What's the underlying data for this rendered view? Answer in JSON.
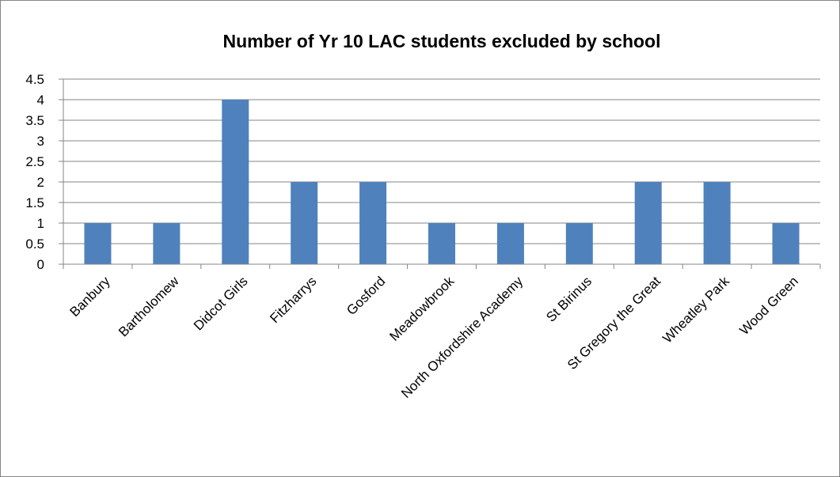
{
  "chart_data": {
    "type": "bar",
    "title": "Number of Yr 10 LAC students excluded by school",
    "xlabel": "",
    "ylabel": "",
    "categories": [
      "Banbury",
      "Bartholomew",
      "Didcot Girls",
      "Fitzharrys",
      "Gosford",
      "Meadowbrook",
      "North Oxfordshire Academy",
      "St Birinus",
      "St Gregory the Great",
      "Wheatley Park",
      "Wood Green"
    ],
    "values": [
      1,
      1,
      4,
      2,
      2,
      1,
      1,
      1,
      2,
      2,
      1
    ],
    "ylim": [
      0,
      4.5
    ],
    "yticks": [
      "0",
      "0.5",
      "1",
      "1.5",
      "2",
      "2.5",
      "3",
      "3.5",
      "4",
      "4.5"
    ],
    "grid": true,
    "legend": "none",
    "bar_color": "#4F81BD"
  }
}
